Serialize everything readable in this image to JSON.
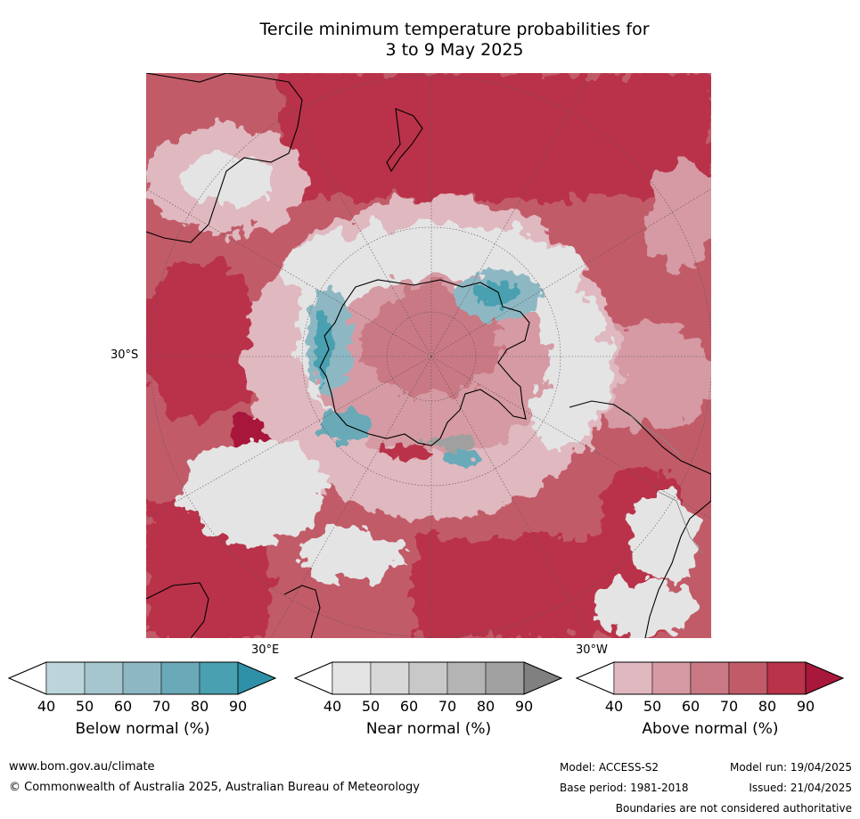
{
  "title": {
    "line1": "Tercile minimum temperature probabilities for",
    "line2": "3 to 9 May 2025"
  },
  "map": {
    "projection": "south-polar stereographic",
    "lat_label": "30°S",
    "lon_labels": [
      "30°E",
      "30°W"
    ],
    "colors": {
      "above_normal": [
        "#e0b8bf",
        "#d59aa3",
        "#c97983",
        "#c25b68",
        "#b9334a",
        "#a8183a"
      ],
      "near_normal": [
        "#e4e4e4",
        "#d8d8d8",
        "#c8c8c8",
        "#b4b4b4",
        "#a0a0a0",
        "#808080"
      ],
      "below_normal": [
        "#bcd5db",
        "#a5c6ce",
        "#8db8c3",
        "#6aa9b7",
        "#48a0b0",
        "#2e91a7"
      ],
      "coastline": "#000000",
      "borders": "#888888"
    }
  },
  "colorbars": [
    {
      "label": "Below normal (%)",
      "ticks": [
        "40",
        "50",
        "60",
        "70",
        "80",
        "90"
      ],
      "colors": [
        "#bcd5db",
        "#a5c6ce",
        "#8db8c3",
        "#6aa9b7",
        "#48a0b0",
        "#2e91a7"
      ]
    },
    {
      "label": "Near normal (%)",
      "ticks": [
        "40",
        "50",
        "60",
        "70",
        "80",
        "90"
      ],
      "colors": [
        "#e4e4e4",
        "#d8d8d8",
        "#c8c8c8",
        "#b4b4b4",
        "#a0a0a0",
        "#808080"
      ]
    },
    {
      "label": "Above normal (%)",
      "ticks": [
        "40",
        "50",
        "60",
        "70",
        "80",
        "90"
      ],
      "colors": [
        "#e0b8bf",
        "#d59aa3",
        "#c97983",
        "#c25b68",
        "#b9334a",
        "#a8183a"
      ]
    }
  ],
  "footer": {
    "website": "www.bom.gov.au/climate",
    "copyright": "© Commonwealth of Australia 2025, Australian Bureau of Meteorology",
    "model": "Model: ACCESS-S2",
    "base_period": "Base period: 1981-2018",
    "model_run": "Model run: 19/04/2025",
    "issued": "Issued: 21/04/2025",
    "disclaimer": "Boundaries are not considered authoritative"
  }
}
